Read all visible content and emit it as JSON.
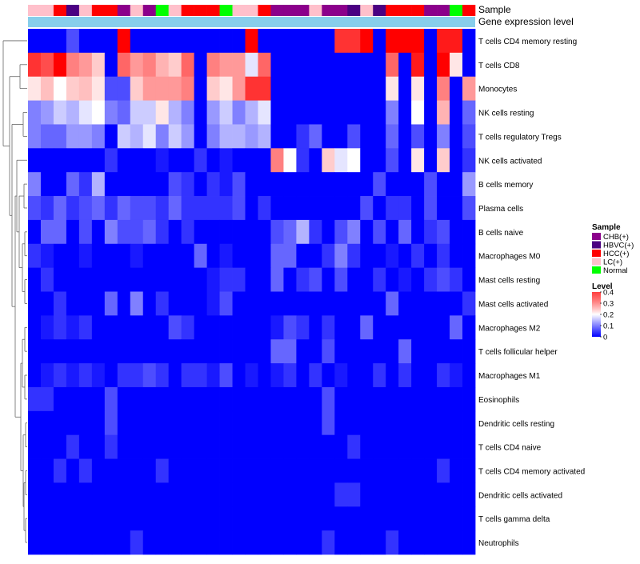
{
  "chart_data": {
    "type": "heatmap",
    "title": "",
    "annotation_tracks": [
      {
        "name": "Sample"
      },
      {
        "name": "Gene expression level"
      }
    ],
    "column_annotation_sample": [
      "LC(+)",
      "LC(+)",
      "HCC(+)",
      "HBVC(+)",
      "LC(+)",
      "HCC(+)",
      "HCC(+)",
      "CHB(+)",
      "LC(+)",
      "CHB(+)",
      "Normal",
      "LC(+)",
      "HCC(+)",
      "HCC(+)",
      "HCC(+)",
      "Normal",
      "LC(+)",
      "LC(+)",
      "HCC(+)",
      "CHB(+)",
      "CHB(+)",
      "CHB(+)",
      "LC(+)",
      "CHB(+)",
      "CHB(+)",
      "HBVC(+)",
      "LC(+)",
      "HBVC(+)",
      "HCC(+)",
      "HCC(+)",
      "HCC(+)",
      "CHB(+)",
      "CHB(+)",
      "Normal",
      "HCC(+)"
    ],
    "rows": [
      "T cells CD4 memory resting",
      "T cells CD8",
      "Monocytes",
      "NK cells resting",
      "T cells regulatory  Tregs",
      "NK cells activated",
      "B cells memory",
      "Plasma cells",
      "B cells naive",
      "Macrophages M0",
      "Mast cells resting",
      "Mast cells activated",
      "Macrophages M2",
      "T cells follicular helper",
      "Macrophages M1",
      "Eosinophils",
      "Dendritic cells resting",
      "T cells CD4 naive",
      "T cells CD4 memory activated",
      "Dendritic cells activated",
      "T cells gamma delta",
      "Neutrophils"
    ],
    "values": [
      [
        0.0,
        0.0,
        0.0,
        0.06,
        0.0,
        0.0,
        0.0,
        0.4,
        0.0,
        0.0,
        0.0,
        0.0,
        0.0,
        0.0,
        0.0,
        0.0,
        0.0,
        0.4,
        0.0,
        0.0,
        0.0,
        0.0,
        0.0,
        0.0,
        0.36,
        0.36,
        0.4,
        0.0,
        0.4,
        0.4,
        0.4,
        0.0,
        0.38,
        0.38,
        0.0
      ],
      [
        0.36,
        0.34,
        0.4,
        0.3,
        0.28,
        0.24,
        0.0,
        0.32,
        0.28,
        0.3,
        0.26,
        0.24,
        0.32,
        0.0,
        0.3,
        0.28,
        0.28,
        0.18,
        0.32,
        0.0,
        0.0,
        0.0,
        0.0,
        0.0,
        0.0,
        0.0,
        0.0,
        0.0,
        0.32,
        0.0,
        0.38,
        0.0,
        0.4,
        0.22,
        0.0
      ],
      [
        0.22,
        0.25,
        0.2,
        0.24,
        0.25,
        0.22,
        0.06,
        0.06,
        0.24,
        0.28,
        0.28,
        0.28,
        0.3,
        0.0,
        0.24,
        0.22,
        0.28,
        0.36,
        0.36,
        0.0,
        0.0,
        0.0,
        0.0,
        0.0,
        0.0,
        0.0,
        0.0,
        0.0,
        0.22,
        0.0,
        0.22,
        0.0,
        0.3,
        0.0,
        0.28
      ],
      [
        0.1,
        0.12,
        0.16,
        0.14,
        0.18,
        0.2,
        0.1,
        0.08,
        0.16,
        0.16,
        0.22,
        0.14,
        0.1,
        0.0,
        0.12,
        0.16,
        0.1,
        0.14,
        0.18,
        0.0,
        0.0,
        0.0,
        0.0,
        0.0,
        0.0,
        0.0,
        0.0,
        0.0,
        0.1,
        0.0,
        0.2,
        0.0,
        0.26,
        0.0,
        0.08
      ],
      [
        0.1,
        0.08,
        0.08,
        0.12,
        0.12,
        0.1,
        0.0,
        0.16,
        0.14,
        0.18,
        0.1,
        0.16,
        0.12,
        0.0,
        0.1,
        0.14,
        0.14,
        0.12,
        0.14,
        0.0,
        0.0,
        0.04,
        0.08,
        0.0,
        0.0,
        0.06,
        0.0,
        0.0,
        0.08,
        0.0,
        0.06,
        0.0,
        0.1,
        0.0,
        0.06
      ],
      [
        0.0,
        0.0,
        0.0,
        0.0,
        0.0,
        0.0,
        0.04,
        0.0,
        0.0,
        0.0,
        0.02,
        0.0,
        0.0,
        0.04,
        0.0,
        0.02,
        0.0,
        0.0,
        0.0,
        0.3,
        0.2,
        0.04,
        0.0,
        0.24,
        0.18,
        0.2,
        0.0,
        0.0,
        0.06,
        0.0,
        0.22,
        0.0,
        0.24,
        0.0,
        0.04
      ],
      [
        0.1,
        0.0,
        0.0,
        0.08,
        0.04,
        0.14,
        0.0,
        0.0,
        0.0,
        0.0,
        0.0,
        0.06,
        0.04,
        0.0,
        0.04,
        0.02,
        0.06,
        0.0,
        0.0,
        0.0,
        0.0,
        0.0,
        0.0,
        0.0,
        0.0,
        0.0,
        0.0,
        0.06,
        0.0,
        0.0,
        0.0,
        0.06,
        0.0,
        0.0,
        0.12
      ],
      [
        0.06,
        0.04,
        0.08,
        0.04,
        0.06,
        0.08,
        0.04,
        0.08,
        0.06,
        0.06,
        0.04,
        0.08,
        0.04,
        0.04,
        0.04,
        0.04,
        0.06,
        0.0,
        0.04,
        0.0,
        0.0,
        0.0,
        0.0,
        0.0,
        0.0,
        0.0,
        0.06,
        0.0,
        0.04,
        0.04,
        0.0,
        0.06,
        0.0,
        0.0,
        0.06
      ],
      [
        0.0,
        0.08,
        0.08,
        0.0,
        0.06,
        0.0,
        0.1,
        0.06,
        0.06,
        0.08,
        0.04,
        0.0,
        0.04,
        0.0,
        0.0,
        0.0,
        0.0,
        0.0,
        0.0,
        0.06,
        0.08,
        0.14,
        0.04,
        0.0,
        0.06,
        0.1,
        0.0,
        0.06,
        0.0,
        0.08,
        0.0,
        0.04,
        0.06,
        0.0,
        0.0
      ],
      [
        0.04,
        0.02,
        0.0,
        0.0,
        0.02,
        0.0,
        0.0,
        0.0,
        0.02,
        0.0,
        0.0,
        0.0,
        0.0,
        0.08,
        0.0,
        0.02,
        0.0,
        0.0,
        0.0,
        0.08,
        0.08,
        0.0,
        0.0,
        0.04,
        0.1,
        0.04,
        0.0,
        0.0,
        0.02,
        0.0,
        0.04,
        0.0,
        0.04,
        0.0,
        0.0
      ],
      [
        0.0,
        0.04,
        0.0,
        0.0,
        0.0,
        0.0,
        0.0,
        0.0,
        0.0,
        0.0,
        0.0,
        0.0,
        0.0,
        0.0,
        0.02,
        0.04,
        0.04,
        0.0,
        0.0,
        0.08,
        0.0,
        0.04,
        0.06,
        0.0,
        0.06,
        0.0,
        0.0,
        0.04,
        0.0,
        0.02,
        0.0,
        0.04,
        0.06,
        0.04,
        0.0
      ],
      [
        0.0,
        0.0,
        0.04,
        0.0,
        0.0,
        0.0,
        0.08,
        0.0,
        0.1,
        0.0,
        0.04,
        0.0,
        0.0,
        0.0,
        0.02,
        0.06,
        0.0,
        0.0,
        0.0,
        0.0,
        0.0,
        0.0,
        0.0,
        0.0,
        0.0,
        0.0,
        0.0,
        0.0,
        0.08,
        0.0,
        0.0,
        0.0,
        0.0,
        0.0,
        0.04
      ],
      [
        0.0,
        0.02,
        0.04,
        0.02,
        0.04,
        0.0,
        0.0,
        0.0,
        0.0,
        0.0,
        0.0,
        0.06,
        0.04,
        0.0,
        0.0,
        0.0,
        0.0,
        0.0,
        0.0,
        0.02,
        0.06,
        0.04,
        0.0,
        0.04,
        0.0,
        0.0,
        0.08,
        0.0,
        0.0,
        0.0,
        0.0,
        0.0,
        0.0,
        0.08,
        0.0
      ],
      [
        0.0,
        0.0,
        0.0,
        0.0,
        0.0,
        0.0,
        0.0,
        0.0,
        0.0,
        0.0,
        0.0,
        0.0,
        0.0,
        0.0,
        0.0,
        0.0,
        0.0,
        0.0,
        0.0,
        0.08,
        0.08,
        0.0,
        0.0,
        0.06,
        0.0,
        0.0,
        0.0,
        0.0,
        0.0,
        0.08,
        0.0,
        0.0,
        0.0,
        0.0,
        0.0
      ],
      [
        0.0,
        0.02,
        0.04,
        0.02,
        0.04,
        0.02,
        0.0,
        0.04,
        0.04,
        0.06,
        0.04,
        0.0,
        0.04,
        0.04,
        0.02,
        0.06,
        0.0,
        0.02,
        0.0,
        0.02,
        0.04,
        0.0,
        0.04,
        0.0,
        0.02,
        0.0,
        0.0,
        0.04,
        0.0,
        0.04,
        0.0,
        0.0,
        0.04,
        0.02,
        0.0
      ],
      [
        0.04,
        0.04,
        0.0,
        0.0,
        0.0,
        0.0,
        0.06,
        0.0,
        0.0,
        0.0,
        0.0,
        0.0,
        0.0,
        0.0,
        0.0,
        0.0,
        0.0,
        0.0,
        0.0,
        0.0,
        0.0,
        0.0,
        0.0,
        0.06,
        0.0,
        0.0,
        0.0,
        0.0,
        0.0,
        0.0,
        0.0,
        0.0,
        0.0,
        0.0,
        0.0
      ],
      [
        0.0,
        0.0,
        0.0,
        0.0,
        0.0,
        0.0,
        0.06,
        0.0,
        0.0,
        0.0,
        0.0,
        0.0,
        0.0,
        0.0,
        0.0,
        0.0,
        0.0,
        0.0,
        0.0,
        0.0,
        0.0,
        0.0,
        0.0,
        0.06,
        0.0,
        0.0,
        0.0,
        0.0,
        0.0,
        0.0,
        0.0,
        0.0,
        0.0,
        0.0,
        0.0
      ],
      [
        0.0,
        0.0,
        0.0,
        0.04,
        0.0,
        0.0,
        0.04,
        0.0,
        0.0,
        0.0,
        0.0,
        0.0,
        0.0,
        0.0,
        0.0,
        0.0,
        0.0,
        0.0,
        0.0,
        0.0,
        0.0,
        0.0,
        0.0,
        0.0,
        0.0,
        0.04,
        0.0,
        0.0,
        0.0,
        0.0,
        0.0,
        0.0,
        0.0,
        0.0,
        0.0
      ],
      [
        0.0,
        0.0,
        0.04,
        0.0,
        0.04,
        0.0,
        0.0,
        0.0,
        0.0,
        0.0,
        0.04,
        0.0,
        0.0,
        0.0,
        0.0,
        0.0,
        0.0,
        0.0,
        0.0,
        0.0,
        0.0,
        0.0,
        0.0,
        0.0,
        0.0,
        0.0,
        0.0,
        0.0,
        0.0,
        0.0,
        0.0,
        0.0,
        0.04,
        0.0,
        0.0
      ],
      [
        0.0,
        0.0,
        0.0,
        0.0,
        0.0,
        0.0,
        0.0,
        0.0,
        0.0,
        0.0,
        0.0,
        0.0,
        0.0,
        0.0,
        0.0,
        0.0,
        0.0,
        0.0,
        0.0,
        0.0,
        0.0,
        0.0,
        0.0,
        0.0,
        0.04,
        0.04,
        0.0,
        0.0,
        0.0,
        0.0,
        0.0,
        0.0,
        0.0,
        0.0,
        0.0
      ],
      [
        0.0,
        0.0,
        0.0,
        0.0,
        0.0,
        0.0,
        0.0,
        0.0,
        0.0,
        0.0,
        0.0,
        0.0,
        0.0,
        0.0,
        0.0,
        0.0,
        0.0,
        0.0,
        0.0,
        0.0,
        0.0,
        0.0,
        0.0,
        0.0,
        0.0,
        0.0,
        0.0,
        0.0,
        0.0,
        0.0,
        0.0,
        0.0,
        0.0,
        0.0,
        0.0
      ],
      [
        0.0,
        0.0,
        0.0,
        0.0,
        0.0,
        0.0,
        0.0,
        0.0,
        0.04,
        0.0,
        0.0,
        0.0,
        0.0,
        0.0,
        0.0,
        0.0,
        0.0,
        0.0,
        0.0,
        0.0,
        0.0,
        0.0,
        0.0,
        0.04,
        0.0,
        0.0,
        0.0,
        0.0,
        0.04,
        0.0,
        0.0,
        0.0,
        0.0,
        0.0,
        0.0
      ]
    ],
    "color_scale": {
      "min": 0,
      "max": 0.4,
      "colors": [
        "#0000ff",
        "#ffffff",
        "#ff0000"
      ]
    },
    "legend": {
      "sample_title": "Sample",
      "sample_items": [
        {
          "label": "CHB(+)",
          "color": "#8b008b"
        },
        {
          "label": "HBVC(+)",
          "color": "#4b0082"
        },
        {
          "label": "HCC(+)",
          "color": "#ff0000"
        },
        {
          "label": "LC(+)",
          "color": "#ffc0cb"
        },
        {
          "label": "Normal",
          "color": "#00ff00"
        }
      ],
      "level_title": "Level",
      "level_ticks": [
        "0.4",
        "0.3",
        "0.2",
        "0.1",
        "0"
      ],
      "level_tick_values": [
        0.4,
        0.3,
        0.2,
        0.1,
        0
      ]
    },
    "gene_expression_bar_color": "#87ceeb"
  }
}
